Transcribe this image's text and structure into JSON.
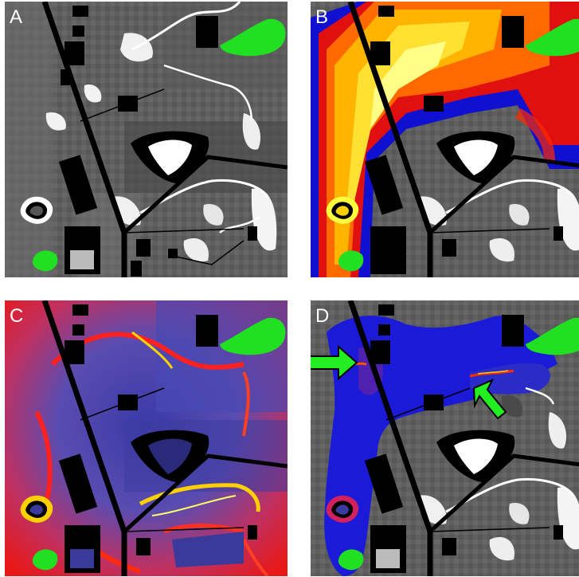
{
  "panels": [
    {
      "label": "A",
      "overlay": "none"
    },
    {
      "label": "B",
      "overlay": "heat"
    },
    {
      "label": "C",
      "overlay": "flow"
    },
    {
      "label": "D",
      "overlay": "corridor"
    }
  ],
  "colors": {
    "source_patch": "#21e021",
    "road": "#000000",
    "arrow": "#22ee22",
    "heat_scale": [
      "#0000cc",
      "#ff0000",
      "#ffd000",
      "#ffff66"
    ],
    "corridor": "#1a1ad8"
  },
  "icons": {
    "arrow_left": "arrow-right-icon",
    "arrow_right": "arrow-up-left-icon"
  }
}
